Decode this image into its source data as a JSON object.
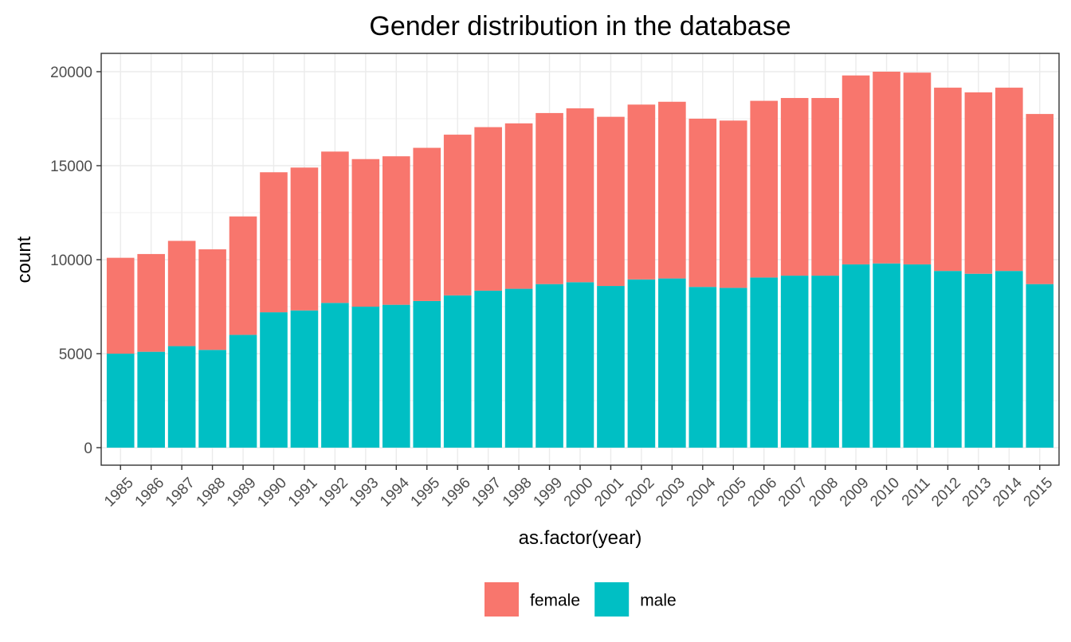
{
  "chart_data": {
    "type": "bar",
    "stacked": true,
    "title": "Gender distribution in the database",
    "xlabel": "as.factor(year)",
    "ylabel": "count",
    "ylim": [
      0,
      21000
    ],
    "yticks": [
      "0",
      "5000",
      "10000",
      "15000",
      "20000"
    ],
    "ytick_values": [
      0,
      5000,
      10000,
      15000,
      20000
    ],
    "grid": true,
    "legend_position": "bottom",
    "categories": [
      "1985",
      "1986",
      "1987",
      "1988",
      "1989",
      "1990",
      "1991",
      "1992",
      "1993",
      "1994",
      "1995",
      "1996",
      "1997",
      "1998",
      "1999",
      "2000",
      "2001",
      "2002",
      "2003",
      "2004",
      "2005",
      "2006",
      "2007",
      "2008",
      "2009",
      "2010",
      "2011",
      "2012",
      "2013",
      "2014",
      "2015"
    ],
    "series": [
      {
        "name": "male",
        "color": "#00bfc4",
        "values": [
          5000,
          5100,
          5400,
          5200,
          6000,
          7200,
          7300,
          7700,
          7500,
          7600,
          7800,
          8100,
          8350,
          8450,
          8700,
          8800,
          8600,
          8950,
          9000,
          8550,
          8500,
          9050,
          9150,
          9150,
          9750,
          9800,
          9750,
          9400,
          9250,
          9400,
          8700
        ]
      },
      {
        "name": "female",
        "color": "#f8766d",
        "values": [
          5100,
          5200,
          5600,
          5350,
          6300,
          7450,
          7600,
          8050,
          7850,
          7900,
          8150,
          8550,
          8700,
          8800,
          9100,
          9250,
          9000,
          9300,
          9400,
          8950,
          8900,
          9400,
          9450,
          9450,
          10050,
          10200,
          10200,
          9750,
          9650,
          9750,
          9050
        ]
      }
    ],
    "legend": [
      {
        "name": "female",
        "color": "#f8766d"
      },
      {
        "name": "male",
        "color": "#00bfc4"
      }
    ]
  }
}
